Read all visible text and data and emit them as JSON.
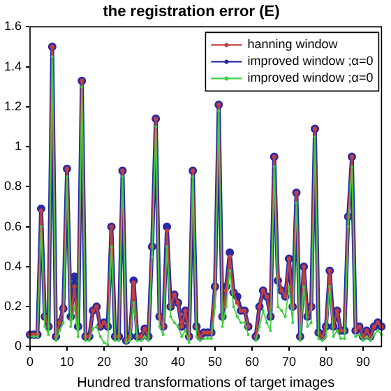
{
  "chart_data": {
    "type": "line",
    "title": "the registration error (E)",
    "xlabel": "Hundred transformations of target images",
    "x": [
      0,
      1,
      2,
      3,
      4,
      5,
      6,
      7,
      8,
      9,
      10,
      11,
      12,
      13,
      14,
      15,
      16,
      17,
      18,
      19,
      20,
      21,
      22,
      23,
      24,
      25,
      26,
      27,
      28,
      29,
      30,
      31,
      32,
      33,
      34,
      35,
      36,
      37,
      38,
      39,
      40,
      41,
      42,
      43,
      44,
      45,
      46,
      47,
      48,
      49,
      50,
      51,
      52,
      53,
      54,
      55,
      56,
      57,
      58,
      59,
      60,
      61,
      62,
      63,
      64,
      65,
      66,
      67,
      68,
      69,
      70,
      71,
      72,
      73,
      74,
      75,
      76,
      77,
      78,
      79,
      80,
      81,
      82,
      83,
      84,
      85,
      86,
      87,
      88,
      89,
      90,
      91,
      92,
      93,
      94,
      95
    ],
    "series": [
      {
        "name": "hanning window",
        "color": "#c04040",
        "values": [
          0.06,
          0.06,
          0.06,
          0.68,
          0.15,
          0.1,
          1.5,
          0.05,
          0.12,
          0.19,
          0.89,
          0.14,
          0.3,
          0.1,
          1.33,
          0.05,
          0.05,
          0.18,
          0.2,
          0.1,
          0.12,
          0.1,
          0.6,
          0.05,
          0.05,
          0.88,
          0.03,
          0.05,
          0.32,
          0.05,
          0.05,
          0.09,
          0.05,
          0.5,
          1.14,
          0.15,
          0.1,
          0.58,
          0.2,
          0.26,
          0.22,
          0.1,
          0.18,
          0.05,
          0.88,
          0.1,
          0.05,
          0.07,
          0.07,
          0.07,
          0.3,
          1.21,
          0.15,
          0.28,
          0.45,
          0.27,
          0.22,
          0.18,
          0.18,
          0.1,
          null,
          0.05,
          0.2,
          0.28,
          0.25,
          0.15,
          0.95,
          0.35,
          0.28,
          0.25,
          0.44,
          0.2,
          0.77,
          0.05,
          0.4,
          0.15,
          0.2,
          1.09,
          0.07,
          0.05,
          0.1,
          0.38,
          0.1,
          0.18,
          0.08,
          0.08,
          0.65,
          0.95,
          0.08,
          0.1,
          0.05,
          0.08,
          0.05,
          0.1,
          0.12,
          0.1
        ]
      },
      {
        "name": "improved window ;α=0",
        "color": "#2828a8",
        "values": [
          0.06,
          0.06,
          0.06,
          0.69,
          0.15,
          0.1,
          1.5,
          0.05,
          0.12,
          0.19,
          0.89,
          0.15,
          0.35,
          0.1,
          1.33,
          0.05,
          0.05,
          0.18,
          0.2,
          0.1,
          0.12,
          0.1,
          0.6,
          0.05,
          0.05,
          0.88,
          0.03,
          0.05,
          0.33,
          0.05,
          0.05,
          0.09,
          0.05,
          0.5,
          1.14,
          0.15,
          0.1,
          0.6,
          0.2,
          0.26,
          0.22,
          0.1,
          0.18,
          0.05,
          0.88,
          0.1,
          0.05,
          0.07,
          0.07,
          0.07,
          0.3,
          1.21,
          0.15,
          0.3,
          0.47,
          0.27,
          0.25,
          0.18,
          0.18,
          0.1,
          null,
          0.05,
          0.2,
          0.28,
          0.25,
          0.15,
          0.95,
          0.33,
          0.28,
          0.25,
          0.44,
          0.2,
          0.77,
          0.05,
          0.4,
          0.15,
          0.2,
          1.09,
          0.07,
          0.05,
          0.1,
          0.38,
          0.1,
          0.18,
          0.08,
          0.08,
          0.65,
          0.95,
          0.08,
          0.1,
          0.05,
          0.08,
          0.05,
          0.1,
          0.12,
          0.1
        ]
      },
      {
        "name": "improved window ;α=0",
        "color": "#40d040",
        "values": [
          0.05,
          0.05,
          0.05,
          0.6,
          0.1,
          0.06,
          1.45,
          0.03,
          0.08,
          0.12,
          0.85,
          0.1,
          0.2,
          0.05,
          1.3,
          0.03,
          0.03,
          0.09,
          0.1,
          0.05,
          0.02,
          0.01,
          0.5,
          0.03,
          0.03,
          0.85,
          0.02,
          0.03,
          0.22,
          0.03,
          0.03,
          0.05,
          0.03,
          0.45,
          1.1,
          0.1,
          0.06,
          0.5,
          0.15,
          0.12,
          0.1,
          0.05,
          0.08,
          0.02,
          0.85,
          0.05,
          0.03,
          0.04,
          0.04,
          0.04,
          0.2,
          1.18,
          0.1,
          0.2,
          0.38,
          0.2,
          0.15,
          0.12,
          0.12,
          0.06,
          null,
          0.03,
          0.1,
          0.18,
          0.12,
          0.08,
          0.9,
          0.2,
          0.18,
          0.15,
          0.3,
          0.12,
          0.72,
          0.03,
          0.3,
          0.1,
          0.12,
          1.05,
          0.04,
          0.03,
          0.05,
          0.3,
          0.05,
          0.08,
          0.04,
          0.04,
          0.6,
          0.9,
          0.05,
          0.06,
          0.03,
          0.05,
          0.03,
          0.06,
          0.08,
          0.06
        ]
      }
    ],
    "xlim": [
      0,
      95
    ],
    "xticks": [
      0,
      10,
      20,
      30,
      40,
      50,
      60,
      70,
      80,
      90
    ],
    "ylim": [
      0,
      1.6
    ],
    "yticks": [
      0,
      0.2,
      0.4,
      0.6,
      0.8,
      1,
      1.2,
      1.4,
      1.6
    ],
    "grid": false,
    "legend": "top right",
    "marker": "circle",
    "line_style": "solid"
  }
}
